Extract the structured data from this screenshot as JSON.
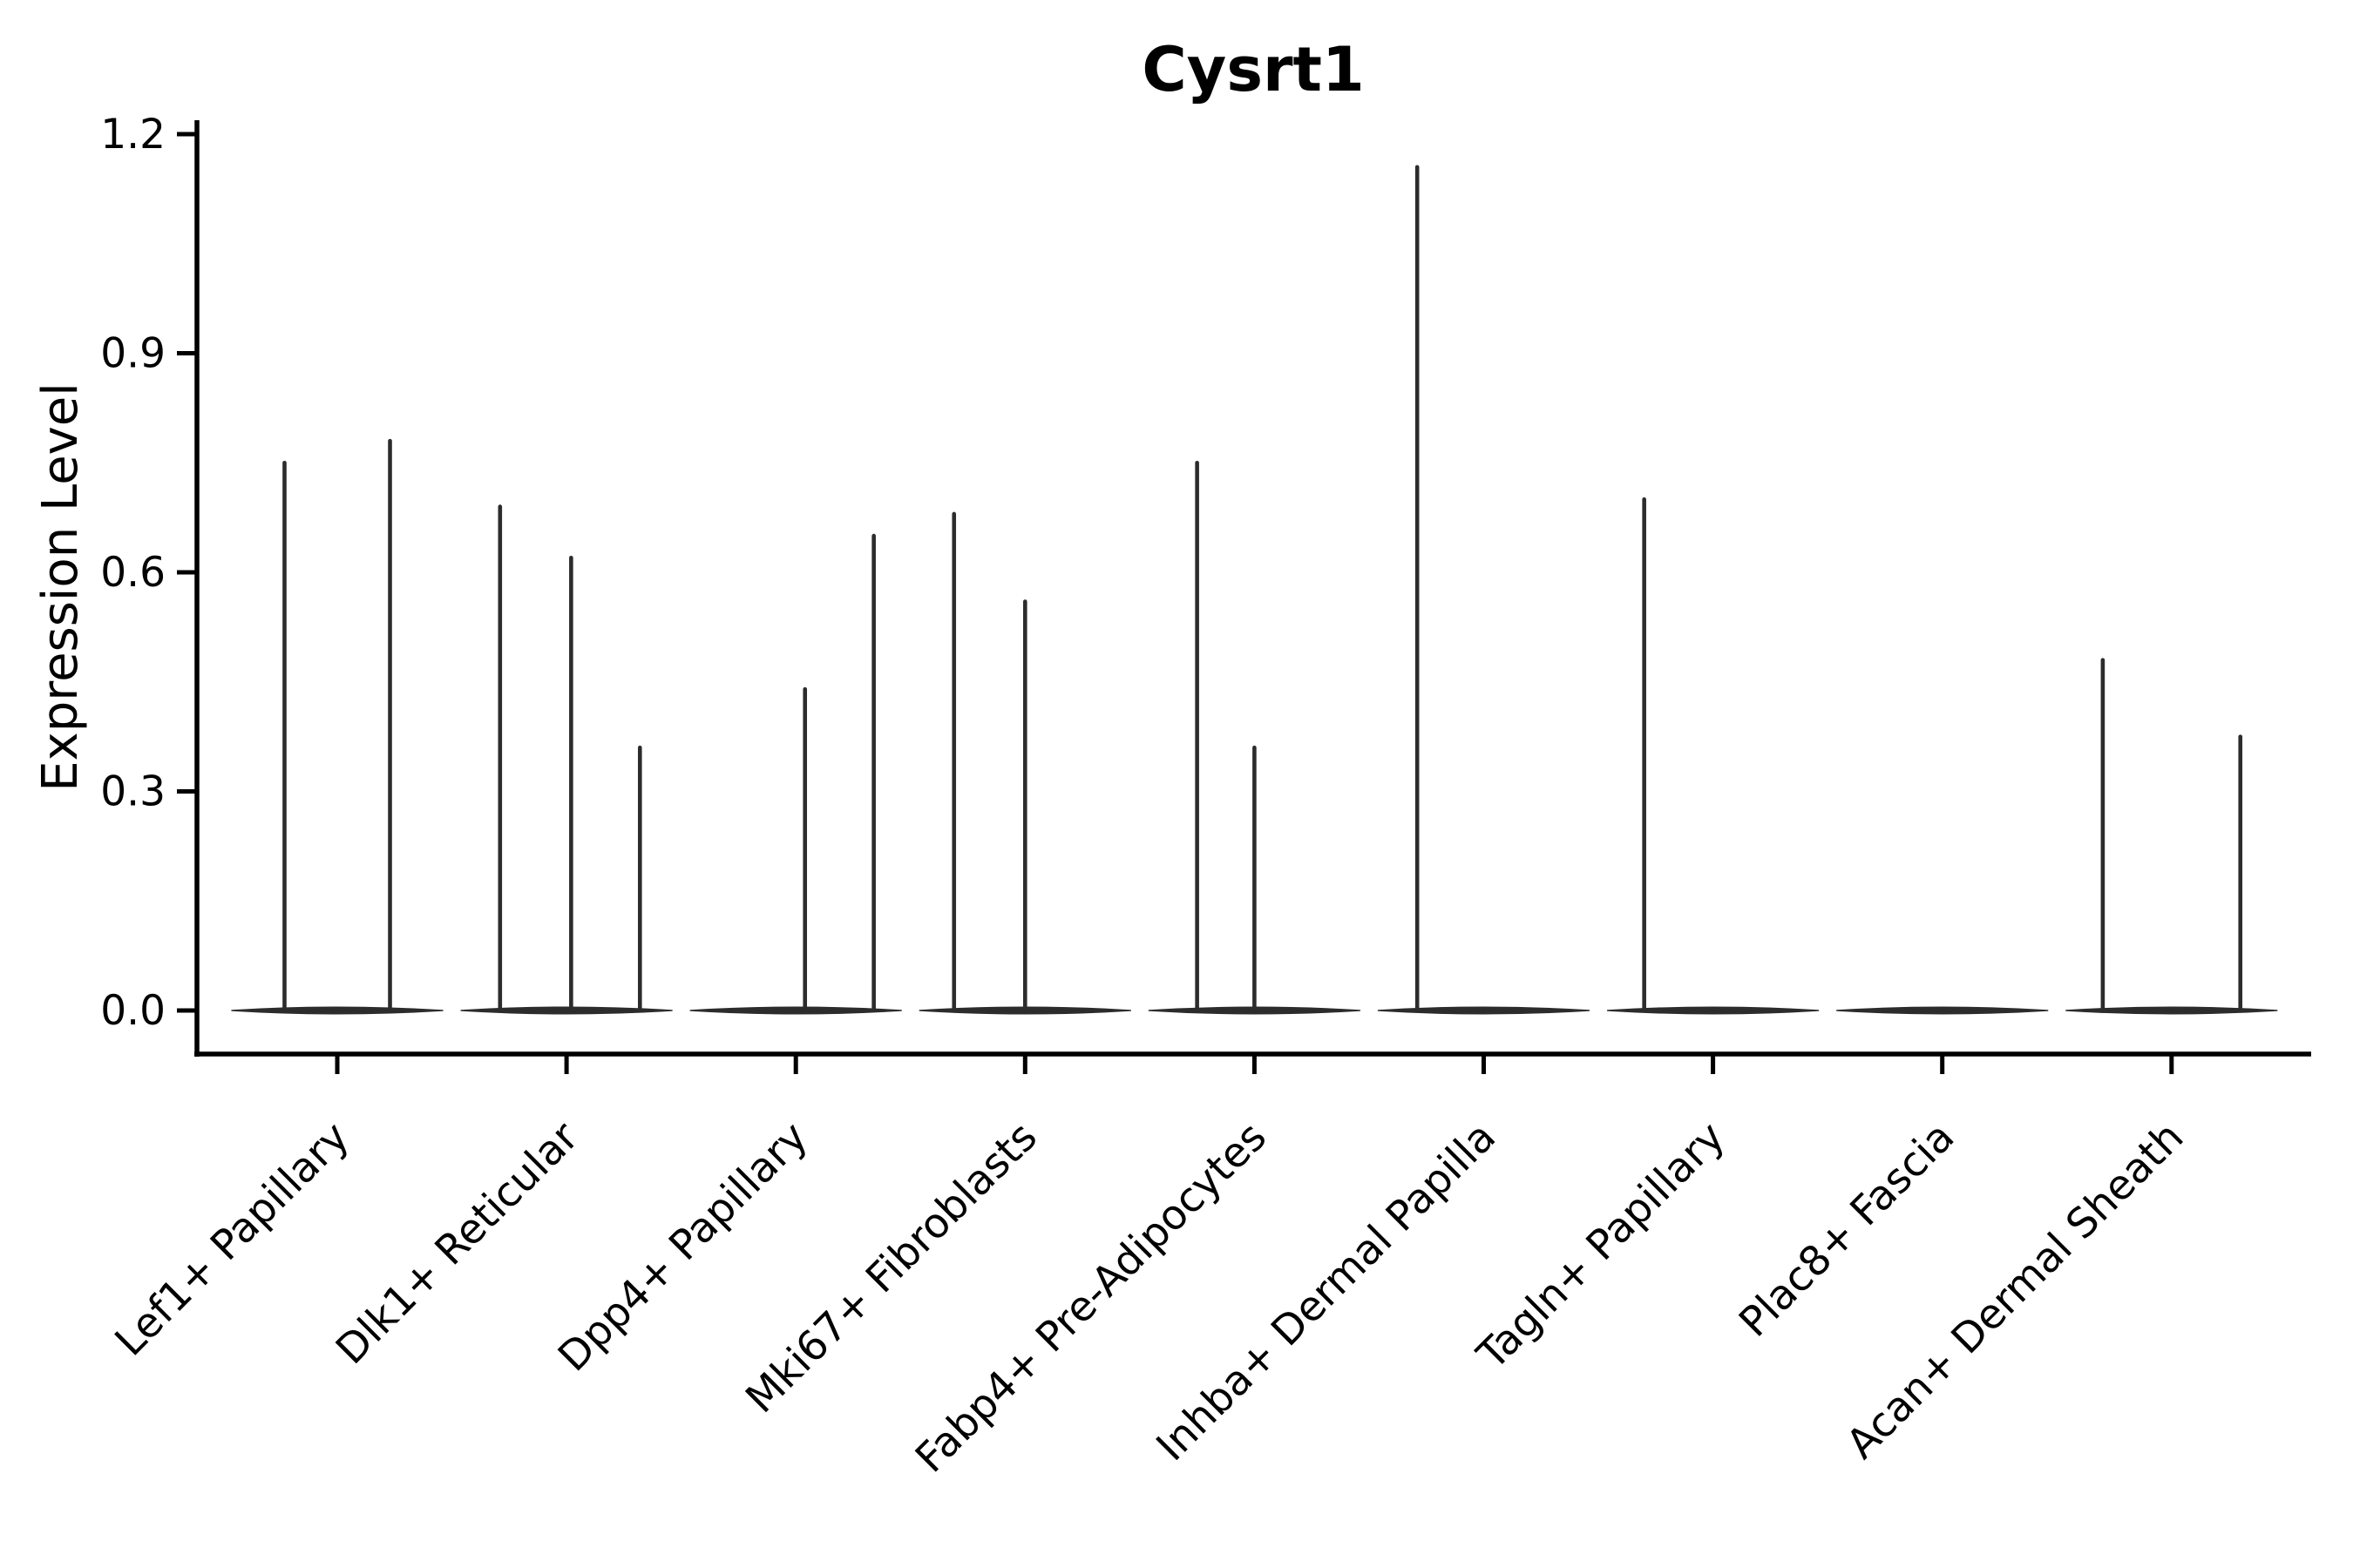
{
  "title": "Cysrt1",
  "ylabel": "Expression Level",
  "chart_data": {
    "type": "violin",
    "title": "Cysrt1",
    "xlabel": "",
    "ylabel": "Expression Level",
    "grid": false,
    "legend": null,
    "ylim": [
      -0.06,
      1.22
    ],
    "y_ticks": [
      0.0,
      0.3,
      0.6,
      0.9,
      1.2
    ],
    "y_tick_labels": [
      "0.0",
      "0.3",
      "0.6",
      "0.9",
      "1.2"
    ],
    "categories": [
      "Lef1+ Papillary",
      "Dlk1+ Reticular",
      "Dpp4+ Papillary",
      "Mki67+ Fibroblasts",
      "Fabp4+ Pre-Adipocytes",
      "Inhba+ Dermal Papilla",
      "Tagln+ Papillary",
      "Plac8+ Fascia",
      "Acan+ Dermal Sheath"
    ],
    "base_value": 0.0,
    "base_halfwidth": 0.46,
    "series": [
      {
        "category": "Lef1+ Papillary",
        "spikes": [
          {
            "pos": -0.23,
            "max": 0.75
          },
          {
            "pos": 0.23,
            "max": 0.78
          }
        ]
      },
      {
        "category": "Dlk1+ Reticular",
        "spikes": [
          {
            "pos": -0.29,
            "max": 0.69
          },
          {
            "pos": 0.02,
            "max": 0.62
          },
          {
            "pos": 0.32,
            "max": 0.36
          }
        ]
      },
      {
        "category": "Dpp4+ Papillary",
        "spikes": [
          {
            "pos": 0.04,
            "max": 0.44
          },
          {
            "pos": 0.34,
            "max": 0.65
          }
        ]
      },
      {
        "category": "Mki67+ Fibroblasts",
        "spikes": [
          {
            "pos": -0.31,
            "max": 0.68
          },
          {
            "pos": 0.0,
            "max": 0.56
          }
        ]
      },
      {
        "category": "Fabp4+ Pre-Adipocytes",
        "spikes": [
          {
            "pos": -0.25,
            "max": 0.75
          },
          {
            "pos": 0.0,
            "max": 0.36
          }
        ]
      },
      {
        "category": "Inhba+ Dermal Papilla",
        "spikes": [
          {
            "pos": -0.29,
            "max": 1.155
          }
        ]
      },
      {
        "category": "Tagln+ Papillary",
        "spikes": [
          {
            "pos": -0.3,
            "max": 0.7
          }
        ]
      },
      {
        "category": "Plac8+ Fascia",
        "spikes": []
      },
      {
        "category": "Acan+ Dermal Sheath",
        "spikes": [
          {
            "pos": -0.3,
            "max": 0.48
          },
          {
            "pos": 0.3,
            "max": 0.375
          }
        ]
      }
    ]
  },
  "style": {
    "violin_color": "#2c2c2c",
    "axis_color": "#000000",
    "background": "#ffffff"
  }
}
